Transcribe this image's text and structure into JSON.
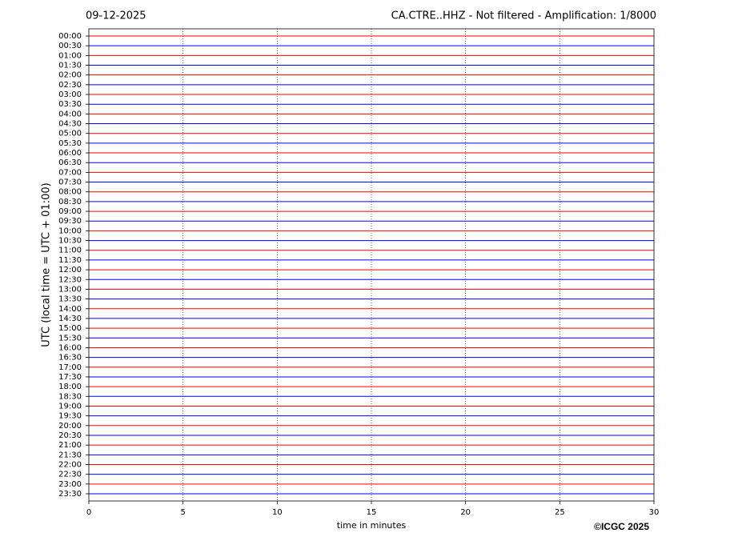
{
  "chart_data": {
    "type": "helicorder",
    "date": "09-12-2025",
    "title": "CA.CTRE..HHZ - Not filtered - Amplification: 1/8000",
    "y_label": "UTC (local time = UTC + 01:00)",
    "x_label": "time in minutes",
    "credit": "©ICGC 2025",
    "categories": [
      "00:00",
      "00:30",
      "01:00",
      "01:30",
      "02:00",
      "02:30",
      "03:00",
      "03:30",
      "04:00",
      "04:30",
      "05:00",
      "05:30",
      "06:00",
      "06:30",
      "07:00",
      "07:30",
      "08:00",
      "08:30",
      "09:00",
      "09:30",
      "10:00",
      "10:30",
      "11:00",
      "11:30",
      "12:00",
      "12:30",
      "13:00",
      "13:30",
      "14:00",
      "14:30",
      "15:00",
      "15:30",
      "16:00",
      "16:30",
      "17:00",
      "17:30",
      "18:00",
      "18:30",
      "19:00",
      "19:30",
      "20:00",
      "20:30",
      "21:00",
      "21:30",
      "22:00",
      "22:30",
      "23:00",
      "23:30"
    ],
    "colors": [
      "#ff0000",
      "#0000ff"
    ],
    "xlim": [
      0,
      30
    ],
    "xticks": [
      0,
      5,
      10,
      15,
      20,
      25,
      30
    ],
    "grid": true
  }
}
